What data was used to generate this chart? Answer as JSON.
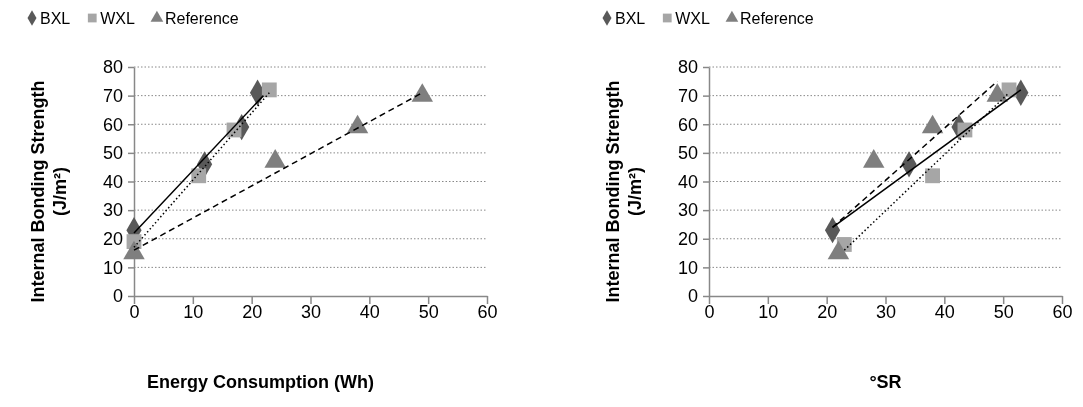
{
  "chart_data": [
    {
      "type": "scatter",
      "xlabel": "Energy Consumption (Wh)",
      "ylabel": "Internal Bonding Strength (J/m²)",
      "xlim": [
        0,
        60
      ],
      "ylim": [
        0,
        80
      ],
      "xticks": [
        0,
        10,
        20,
        30,
        40,
        50,
        60
      ],
      "yticks": [
        0,
        10,
        20,
        30,
        40,
        50,
        60,
        70,
        80
      ],
      "grid": "y",
      "legend": "top",
      "series": [
        {
          "name": "BXL",
          "color": "#595959",
          "marker": "diamond",
          "x": [
            0,
            12,
            18.3,
            21
          ],
          "values": [
            23,
            46,
            59,
            71
          ]
        },
        {
          "name": "WXL",
          "color": "#a6a6a6",
          "marker": "square",
          "x": [
            0,
            11,
            17,
            23
          ],
          "values": [
            19,
            42,
            58,
            72
          ]
        },
        {
          "name": "Reference",
          "color": "#7f7f7f",
          "marker": "triangle",
          "x": [
            0,
            24,
            38,
            49
          ],
          "values": [
            15,
            47,
            59,
            70
          ]
        },
        {
          "type": "line",
          "color": "#000000",
          "line_style": "solid",
          "marker": "none",
          "x": [
            0,
            22
          ],
          "values": [
            22,
            70
          ]
        },
        {
          "type": "line",
          "color": "#000000",
          "line_style": "dotted",
          "marker": "none",
          "x": [
            0,
            23
          ],
          "values": [
            17,
            71
          ]
        },
        {
          "type": "line",
          "color": "#000000",
          "line_style": "dashed",
          "marker": "none",
          "x": [
            0,
            49
          ],
          "values": [
            16,
            71
          ]
        }
      ]
    },
    {
      "type": "scatter",
      "xlabel": "°SR",
      "ylabel": "Internal Bonding Strength (J/m²)",
      "xlim": [
        0,
        60
      ],
      "ylim": [
        0,
        80
      ],
      "xticks": [
        0,
        10,
        20,
        30,
        40,
        50,
        60
      ],
      "yticks": [
        0,
        10,
        20,
        30,
        40,
        50,
        60,
        70,
        80
      ],
      "grid": "y",
      "legend": "top",
      "series": [
        {
          "name": "BXL",
          "color": "#595959",
          "marker": "diamond",
          "x": [
            21,
            34,
            42.5,
            53
          ],
          "values": [
            23,
            46,
            59,
            71
          ]
        },
        {
          "name": "WXL",
          "color": "#a6a6a6",
          "marker": "square",
          "x": [
            23,
            38,
            43.5,
            51
          ],
          "values": [
            18,
            42,
            58,
            72
          ]
        },
        {
          "name": "Reference",
          "color": "#7f7f7f",
          "marker": "triangle",
          "x": [
            22,
            28,
            38,
            49
          ],
          "values": [
            15,
            47,
            59,
            70
          ]
        },
        {
          "type": "line",
          "color": "#000000",
          "line_style": "solid",
          "marker": "none",
          "x": [
            21,
            53
          ],
          "values": [
            24,
            72
          ]
        },
        {
          "type": "line",
          "color": "#000000",
          "line_style": "dotted",
          "marker": "none",
          "x": [
            23,
            51
          ],
          "values": [
            16,
            71
          ]
        },
        {
          "type": "line",
          "color": "#000000",
          "line_style": "dashed",
          "marker": "none",
          "x": [
            21,
            49
          ],
          "values": [
            24,
            75
          ]
        }
      ]
    }
  ]
}
